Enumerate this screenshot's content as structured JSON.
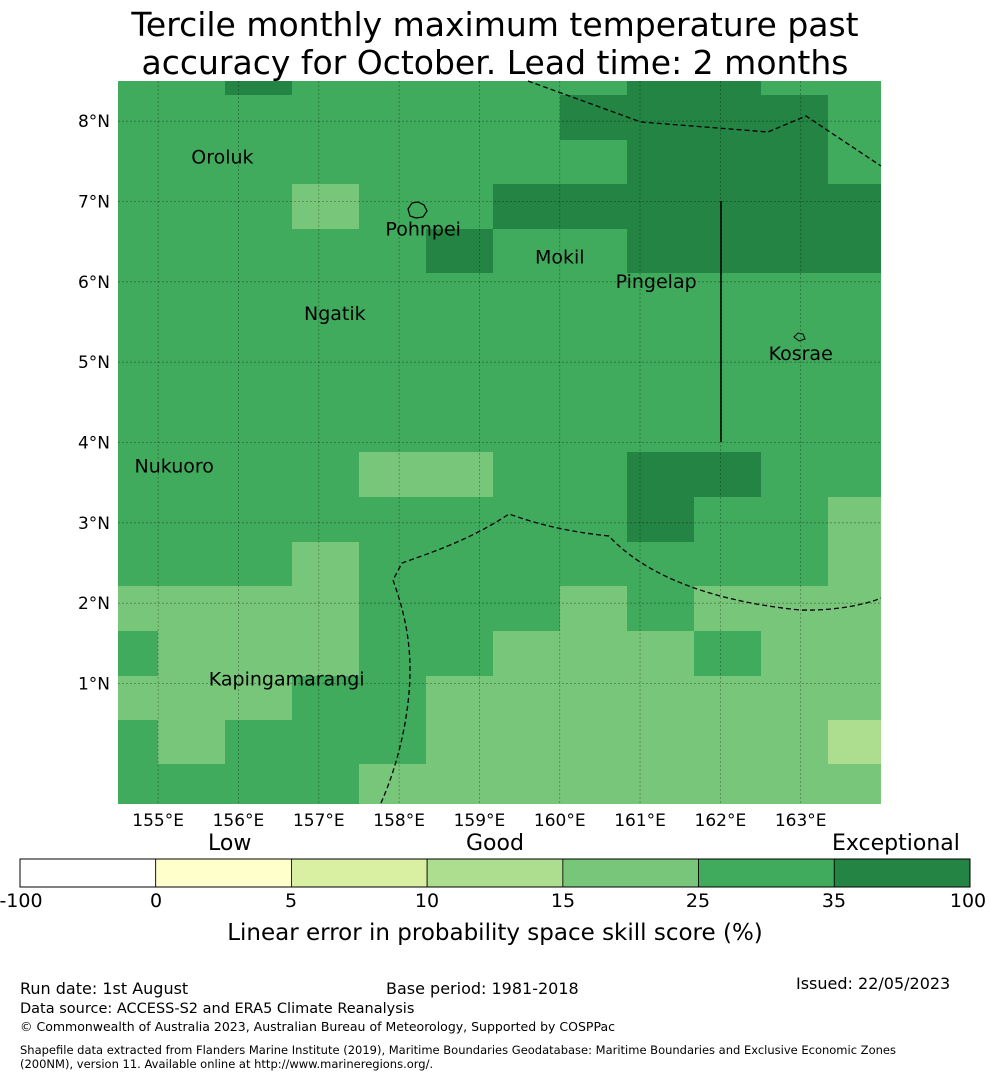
{
  "title": {
    "line1": "Tercile monthly maximum temperature past",
    "line2": "accuracy for October. Lead time: 2 months"
  },
  "map": {
    "lon_ticks": [
      "155°E",
      "156°E",
      "157°E",
      "158°E",
      "159°E",
      "160°E",
      "161°E",
      "162°E",
      "163°E"
    ],
    "lat_ticks": [
      "1°N",
      "2°N",
      "3°N",
      "4°N",
      "5°N",
      "6°N",
      "7°N",
      "8°N"
    ],
    "lon_range": [
      154.5,
      164.0
    ],
    "lat_range": [
      -0.5,
      8.5
    ],
    "places": [
      {
        "name": "Oroluk",
        "lon": 155.8,
        "lat": 7.55
      },
      {
        "name": "Pohnpei",
        "lon": 158.3,
        "lat": 6.65
      },
      {
        "name": "Mokil",
        "lon": 160.0,
        "lat": 6.3
      },
      {
        "name": "Pingelap",
        "lon": 161.2,
        "lat": 6.0
      },
      {
        "name": "Ngatik",
        "lon": 157.2,
        "lat": 5.6
      },
      {
        "name": "Kosrae",
        "lon": 163.0,
        "lat": 5.1
      },
      {
        "name": "Nukuoro",
        "lon": 155.2,
        "lat": 3.7
      },
      {
        "name": "Kapingamarangi",
        "lon": 156.6,
        "lat": 1.05
      }
    ],
    "skill_grid_note": "cell colours = skill category"
  },
  "colorbar": {
    "categories": [
      "Low",
      "Good",
      "Exceptional"
    ],
    "ticks": [
      "-100",
      "0",
      "5",
      "10",
      "15",
      "25",
      "35",
      "100"
    ],
    "colors": [
      "#ffffff",
      "#ffffcc",
      "#d9f0a3",
      "#addd8e",
      "#78c679",
      "#41ab5d",
      "#238443"
    ],
    "label": "Linear error in probability space skill score (%)"
  },
  "footer": {
    "run_date": "Run date: 1st August",
    "base_period": "Base period: 1981-2018",
    "issued": "Issued: 22/05/2023",
    "data_source": "Data source: ACCESS-S2 and ERA5 Climate Reanalysis",
    "copyright": "© Commonwealth of Australia 2023, Australian Bureau of Meteorology, Supported by COSPPac",
    "shapefile_1": "Shapefile data extracted from Flanders Marine Institute (2019), Maritime Boundaries Geodatabase: Maritime Boundaries and Exclusive Economic Zones",
    "shapefile_2": "(200NM), version 11. Available online at http://www.marineregions.org/."
  }
}
